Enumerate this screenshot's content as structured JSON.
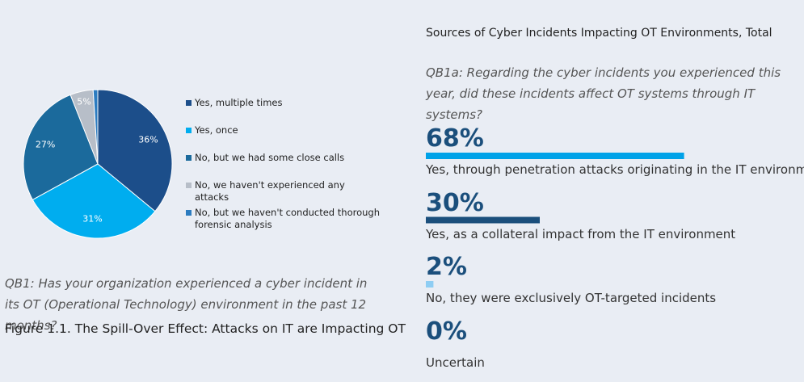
{
  "chart_data": [
    {
      "type": "pie",
      "categories": [
        "Yes, multiple times",
        "Yes, once",
        "No, but we had some close calls",
        "No, we haven't experienced any attacks",
        "No, but we haven't conducted thorough forensic analysis"
      ],
      "values": [
        36,
        31,
        27,
        5,
        1
      ],
      "value_labels": [
        "36%",
        "31%",
        "27%",
        "5%",
        null
      ],
      "colors": [
        "#1c4e8a",
        "#00adef",
        "#1b6a9c",
        "#b7bec8",
        "#2c7cc0"
      ],
      "subtitle": "QB1: Has your organization experienced a cyber incident in its OT (Operational Technology) environment in the past 12 months?",
      "caption": "Figure 1.1. The Spill-Over Effect: Attacks on IT are Impacting OT"
    },
    {
      "type": "bar",
      "title": "Sources of Cyber Incidents Impacting OT Environments, Total",
      "subtitle": "QB1a: Regarding the cyber incidents you experienced this year, did these incidents affect OT systems through IT systems?",
      "categories": [
        "Yes, through penetration attacks originating in the IT environment",
        "Yes, as a collateral impact from the IT environment",
        "No, they were exclusively OT-targeted incidents",
        "Uncertain"
      ],
      "values": [
        68,
        30,
        2,
        0
      ],
      "value_labels": [
        "68%",
        "30%",
        "2%",
        "0%"
      ],
      "colors": [
        "#00a2e8",
        "#1b4f7c",
        "#8ecdf3",
        "#8ecdf3"
      ],
      "xlim": [
        0,
        100
      ]
    }
  ]
}
